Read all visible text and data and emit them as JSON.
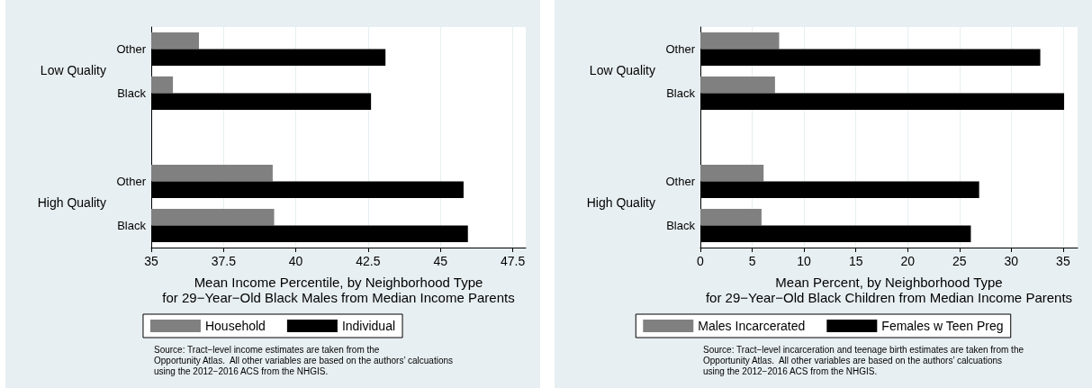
{
  "chart_data": [
    {
      "type": "bar",
      "orientation": "horizontal",
      "categories": [
        "Other",
        "Black",
        null,
        "Other",
        "Black"
      ],
      "series": [
        {
          "name": "Household",
          "color": "#808080",
          "values": [
            36.65,
            35.75,
            null,
            39.2,
            39.25
          ]
        },
        {
          "name": "Individual",
          "color": "#000000",
          "values": [
            43.1,
            42.6,
            null,
            45.8,
            45.95
          ]
        }
      ],
      "xlabel": "Mean Income Percentile, by Neighborhood Type\nfor 29−Year−Old Black Males from Median Income Parents",
      "xlim": [
        35,
        47.95
      ],
      "xticks": [
        35,
        37.5,
        40,
        42.5,
        45,
        47.5
      ],
      "grid": "x",
      "legend": "bottom",
      "annotations": [
        "Low Quality",
        "High Quality",
        "Source: Tract−level income estimates are taken from the\nOpportunity Atlas.  All other variables are based on the authors’ calcuations\nusing the 2012−2016 ACS from the NHGIS."
      ]
    },
    {
      "type": "bar",
      "orientation": "horizontal",
      "categories": [
        "Other",
        "Black",
        null,
        "Other",
        "Black"
      ],
      "series": [
        {
          "name": "Males Incarcerated",
          "color": "#808080",
          "values": [
            7.6,
            7.2,
            null,
            6.1,
            5.9
          ]
        },
        {
          "name": "Females w Teen Preg",
          "color": "#000000",
          "values": [
            32.8,
            35.1,
            null,
            26.9,
            26.1
          ]
        }
      ],
      "xlabel": "Mean Percent, by Neighborhood Type\nfor 29−Year−Old Black Children from Median Income Parents",
      "xlim": [
        0,
        36.4
      ],
      "xticks": [
        0,
        5,
        10,
        15,
        20,
        25,
        30,
        35
      ],
      "grid": "x",
      "legend": "bottom",
      "annotations": [
        "Low Quality",
        "High Quality",
        "Source: Tract−level incarceration and teenage birth estimates are taken from the\nOpportunity Atlas.  All other variables are based on the authors’ calcuations\nusing the 2012−2016 ACS from the NHGIS."
      ]
    }
  ]
}
